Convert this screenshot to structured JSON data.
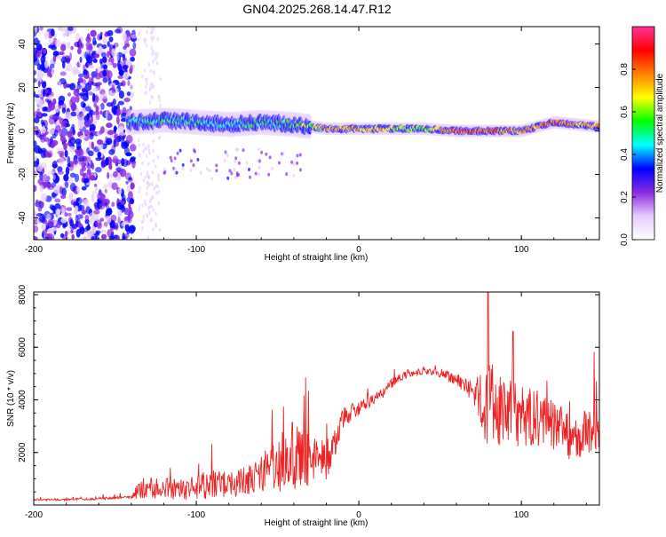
{
  "title": "GN04.2025.268.14.47.R12",
  "chart_data": [
    {
      "type": "heatmap",
      "title": "GN04.2025.268.14.47.R12",
      "xlabel": "Height of straight line (km)",
      "ylabel": "Frequency (Hz)",
      "xlim": [
        -200,
        148
      ],
      "ylim": [
        -50,
        48
      ],
      "xticks": [
        -200,
        -100,
        0,
        100
      ],
      "xtick_labels": [
        "-200",
        "-100",
        "0",
        "100"
      ],
      "yticks": [
        -40,
        -20,
        0,
        20,
        40
      ],
      "ytick_labels": [
        "-40",
        "-20",
        "0",
        "20",
        "40"
      ],
      "colorbar": {
        "label": "Normalized spectral amplitude",
        "range": [
          0,
          1
        ],
        "ticks": [
          0,
          0.2,
          0.4,
          0.6,
          0.8
        ],
        "tick_labels": [
          "0.0",
          "0.2",
          "0.4",
          "0.6",
          "0.8"
        ],
        "colors": [
          "#ffffff",
          "#e6ccff",
          "#8a2be2",
          "#0000ff",
          "#00ffff",
          "#00ff00",
          "#ffff00",
          "#ff8000",
          "#ff0000",
          "#ff3399"
        ]
      },
      "ridge": {
        "x": [
          -140,
          -120,
          -100,
          -80,
          -60,
          -40,
          -20,
          0,
          20,
          40,
          60,
          80,
          100,
          120,
          148
        ],
        "freq": [
          4,
          5,
          4,
          3,
          4,
          3,
          1,
          1,
          1,
          1,
          0,
          0,
          0,
          4,
          2
        ],
        "amplitude": [
          0.45,
          0.5,
          0.5,
          0.45,
          0.5,
          0.55,
          0.7,
          0.7,
          0.65,
          0.6,
          0.85,
          0.8,
          0.75,
          0.8,
          0.7
        ]
      }
    },
    {
      "type": "line",
      "xlabel": "Height of straight line (km)",
      "ylabel": "SNR (10 * v/v)",
      "xlim": [
        -200,
        148
      ],
      "ylim": [
        0,
        8100
      ],
      "xticks": [
        -200,
        -100,
        0,
        100
      ],
      "xtick_labels": [
        "-200",
        "-100",
        "0",
        "100"
      ],
      "yticks": [
        2000,
        4000,
        6000,
        8000
      ],
      "ytick_labels": [
        "2000",
        "4000",
        "6000",
        "8000"
      ],
      "color": "#ee2222",
      "series": [
        {
          "name": "SNR",
          "x": [
            -200,
            -180,
            -160,
            -140,
            -133,
            -125,
            -110,
            -100,
            -90,
            -80,
            -70,
            -60,
            -50,
            -40,
            -30,
            -20,
            -15,
            -10,
            0,
            10,
            20,
            30,
            40,
            50,
            60,
            70,
            80,
            90,
            100,
            110,
            120,
            130,
            140,
            148
          ],
          "baseline": [
            200,
            200,
            250,
            300,
            700,
            650,
            600,
            700,
            800,
            750,
            900,
            1100,
            1500,
            1900,
            1600,
            1700,
            2400,
            3300,
            3700,
            4000,
            4600,
            5000,
            5100,
            5000,
            4800,
            4300,
            3700,
            3500,
            3400,
            3300,
            3000,
            2700,
            2700,
            2800
          ],
          "noise": [
            40,
            40,
            50,
            60,
            500,
            400,
            450,
            500,
            550,
            500,
            600,
            800,
            1100,
            1300,
            1000,
            800,
            600,
            400,
            300,
            250,
            200,
            150,
            120,
            150,
            250,
            400,
            1800,
            1300,
            1200,
            1100,
            1000,
            1000,
            900,
            900
          ]
        }
      ]
    }
  ]
}
